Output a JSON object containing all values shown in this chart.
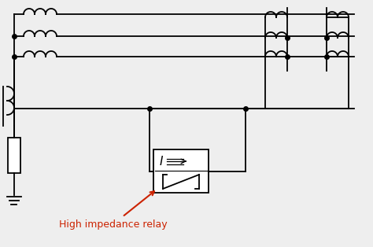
{
  "bg_color": "#eeeeee",
  "line_color": "#000000",
  "dot_color": "#000000",
  "annotation_color": "#cc2200",
  "label": "High impedance relay",
  "lw": 1.3,
  "figw": 4.74,
  "figh": 3.14,
  "dpi": 100
}
